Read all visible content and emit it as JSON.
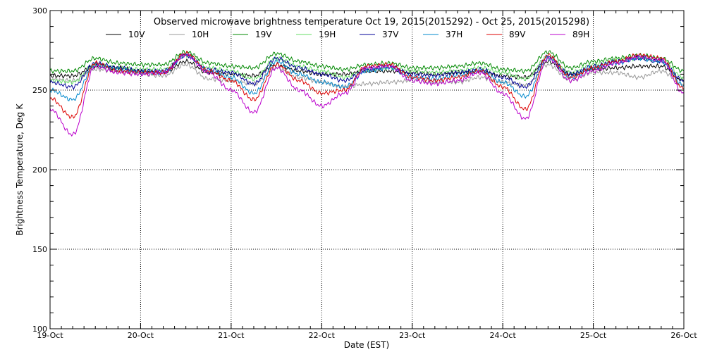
{
  "chart_data": {
    "type": "line",
    "title": "Observed microwave brightness temperature Oct 19, 2015(2015292) - Oct 25, 2015(2015298)",
    "xlabel": "Date (EST)",
    "ylabel": "Brightness Temperature, Deg K",
    "x_ticks": [
      "19-Oct",
      "20-Oct",
      "21-Oct",
      "22-Oct",
      "23-Oct",
      "24-Oct",
      "25-Oct",
      "26-Oct"
    ],
    "xlim": [
      "2015-10-19",
      "2015-10-26"
    ],
    "ylim": [
      100,
      300
    ],
    "y_ticks": [
      100,
      150,
      200,
      250,
      300
    ],
    "grid": true,
    "legend_position": "top",
    "x": [
      "2015-10-19 00:00",
      "2015-10-19 06:00",
      "2015-10-19 12:00",
      "2015-10-19 18:00",
      "2015-10-20 00:00",
      "2015-10-20 06:00",
      "2015-10-20 12:00",
      "2015-10-20 18:00",
      "2015-10-21 00:00",
      "2015-10-21 06:00",
      "2015-10-21 12:00",
      "2015-10-21 18:00",
      "2015-10-22 00:00",
      "2015-10-22 06:00",
      "2015-10-22 12:00",
      "2015-10-22 18:00",
      "2015-10-23 00:00",
      "2015-10-23 06:00",
      "2015-10-23 12:00",
      "2015-10-23 18:00",
      "2015-10-24 00:00",
      "2015-10-24 06:00",
      "2015-10-24 12:00",
      "2015-10-24 18:00",
      "2015-10-25 00:00",
      "2015-10-25 06:00",
      "2015-10-25 12:00",
      "2015-10-25 18:00",
      "2015-10-26 00:00"
    ],
    "series": [
      {
        "name": "10V",
        "color": "#000000",
        "values": [
          259,
          259,
          265,
          264,
          262,
          261,
          268,
          261,
          260,
          259,
          266,
          262,
          260,
          260,
          262,
          262,
          261,
          260,
          261,
          262,
          259,
          258,
          268,
          260,
          263,
          264,
          265,
          265,
          256
        ]
      },
      {
        "name": "10H",
        "color": "#999999",
        "values": [
          257,
          256,
          263,
          262,
          260,
          259,
          266,
          257,
          256,
          254,
          264,
          258,
          255,
          252,
          254,
          255,
          256,
          255,
          255,
          258,
          255,
          253,
          266,
          256,
          261,
          261,
          258,
          262,
          253
        ]
      },
      {
        "name": "19V",
        "color": "#008800",
        "values": [
          262,
          262,
          270,
          267,
          266,
          266,
          274,
          267,
          265,
          264,
          273,
          268,
          265,
          263,
          266,
          267,
          264,
          264,
          265,
          267,
          263,
          262,
          274,
          264,
          268,
          270,
          272,
          270,
          262
        ]
      },
      {
        "name": "19H",
        "color": "#66dd66",
        "values": [
          256,
          255,
          266,
          264,
          263,
          263,
          272,
          264,
          262,
          257,
          270,
          265,
          262,
          258,
          263,
          264,
          262,
          261,
          262,
          264,
          261,
          257,
          271,
          261,
          266,
          269,
          270,
          269,
          258
        ]
      },
      {
        "name": "37V",
        "color": "#000099",
        "values": [
          255,
          252,
          267,
          264,
          262,
          262,
          272,
          263,
          261,
          254,
          270,
          264,
          260,
          256,
          263,
          265,
          260,
          259,
          261,
          263,
          258,
          252,
          271,
          260,
          265,
          268,
          270,
          268,
          256
        ]
      },
      {
        "name": "37H",
        "color": "#0088cc",
        "values": [
          250,
          244,
          266,
          263,
          261,
          261,
          272,
          262,
          258,
          248,
          268,
          260,
          255,
          252,
          262,
          264,
          258,
          257,
          259,
          262,
          255,
          246,
          270,
          258,
          264,
          267,
          270,
          268,
          253
        ]
      },
      {
        "name": "89V",
        "color": "#dd0000",
        "values": [
          245,
          233,
          267,
          262,
          261,
          261,
          273,
          262,
          256,
          244,
          266,
          256,
          248,
          250,
          265,
          266,
          258,
          256,
          258,
          262,
          252,
          238,
          272,
          258,
          264,
          268,
          272,
          270,
          251
        ]
      },
      {
        "name": "89H",
        "color": "#bb00cc",
        "values": [
          238,
          222,
          265,
          261,
          260,
          261,
          272,
          261,
          250,
          236,
          264,
          250,
          240,
          248,
          264,
          265,
          256,
          254,
          256,
          261,
          248,
          232,
          270,
          256,
          262,
          267,
          271,
          269,
          248
        ]
      }
    ]
  }
}
